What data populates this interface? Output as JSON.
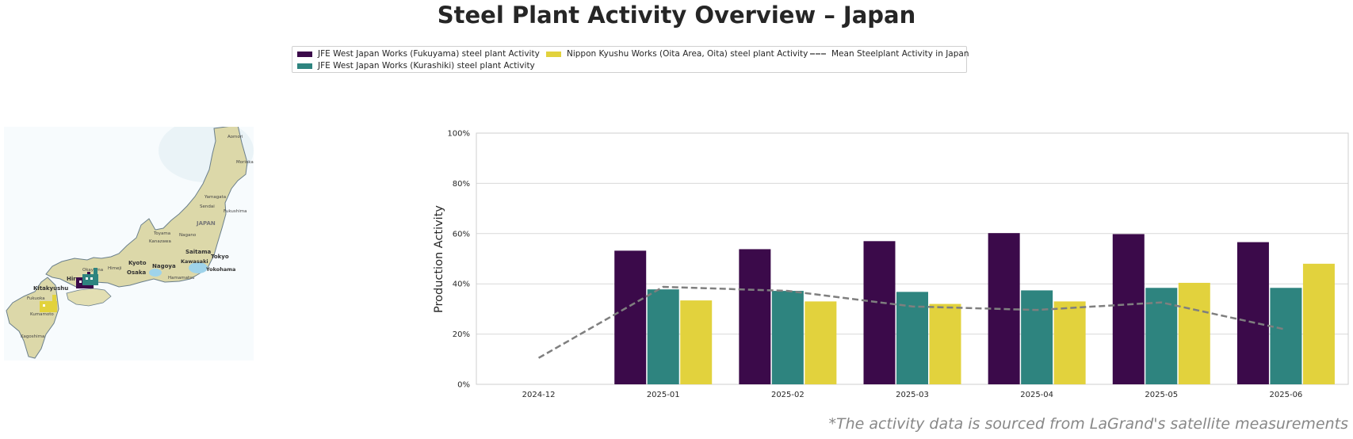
{
  "title": "Steel Plant Activity Overview – Japan",
  "legend": {
    "items": [
      {
        "label": "JFE West Japan Works (Fukuyama) steel plant Activity",
        "color": "#3b0a4a",
        "kind": "bar"
      },
      {
        "label": "JFE West Japan Works (Kurashiki) steel plant Activity",
        "color": "#2e847f",
        "kind": "bar"
      },
      {
        "label": "Nippon Kyushu Works (Oita Area, Oita) steel plant Activity",
        "color": "#e2d23d",
        "kind": "bar"
      },
      {
        "label": "Mean Steelplant Activity in Japan",
        "color": "#7f7f7f",
        "kind": "dashed-line"
      }
    ]
  },
  "map": {
    "labels": [
      "Aomori",
      "Morioka",
      "Yamagata",
      "Sendai",
      "Fukushima",
      "JAPAN",
      "Toyama",
      "Nagano",
      "Kanazawa",
      "Saitama",
      "Tokyo",
      "Kawasaki",
      "Yokohama",
      "Hamamatsu",
      "Nagoya",
      "Kyoto",
      "Osaka",
      "Himeji",
      "Okayama",
      "Hiroshima",
      "Kitakyushu",
      "Fukuoka",
      "Kumamoto",
      "Kagoshima"
    ]
  },
  "chart_data": {
    "type": "bar",
    "categories": [
      "2024-12",
      "2025-01",
      "2025-02",
      "2025-03",
      "2025-04",
      "2025-05",
      "2025-06"
    ],
    "series": [
      {
        "name": "JFE West Japan Works (Fukuyama) steel plant Activity",
        "color": "#3b0a4a",
        "values": [
          null,
          53.2,
          53.8,
          57.0,
          60.2,
          59.8,
          56.6
        ]
      },
      {
        "name": "JFE West Japan Works (Kurashiki) steel plant Activity",
        "color": "#2e847f",
        "values": [
          null,
          37.8,
          37.2,
          36.8,
          37.4,
          38.4,
          38.4
        ]
      },
      {
        "name": "Nippon Kyushu Works (Oita Area, Oita) steel plant Activity",
        "color": "#e2d23d",
        "values": [
          null,
          33.4,
          33.0,
          32.0,
          33.0,
          40.4,
          48.0
        ]
      }
    ],
    "line": {
      "name": "Mean Steelplant Activity in Japan",
      "color": "#7f7f7f",
      "style": "dashed",
      "values": [
        10.5,
        38.8,
        37.2,
        31.0,
        29.6,
        32.6,
        21.8
      ]
    },
    "ylabel": "Production Activity",
    "xlabel": "",
    "ylim": [
      0,
      100
    ],
    "yticks": [
      "0%",
      "20%",
      "40%",
      "60%",
      "80%",
      "100%"
    ],
    "grid": "horizontal",
    "legend_position": "top-center"
  },
  "footnote": "*The activity data is sourced from LaGrand's satellite measurements"
}
